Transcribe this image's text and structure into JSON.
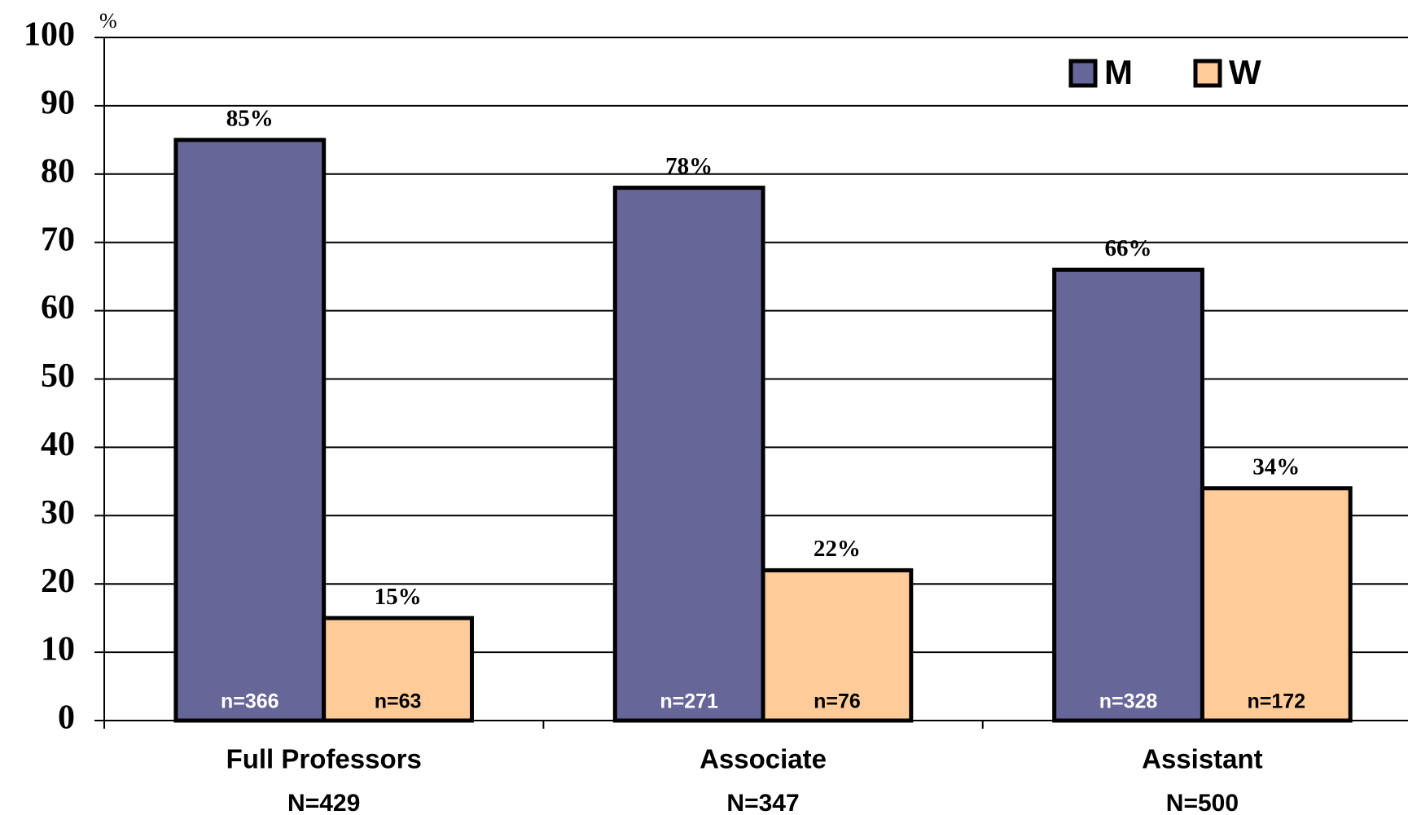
{
  "chart_data": {
    "type": "bar",
    "y_label": "%",
    "categories": [
      "Full Professors",
      "Associate",
      "Assistant"
    ],
    "category_totals": [
      "N=429",
      "N=347",
      "N=500"
    ],
    "series": [
      {
        "name": "M",
        "color": "#666699",
        "values": [
          85,
          78,
          66
        ],
        "value_labels": [
          "85%",
          "78%",
          "66%"
        ],
        "n_labels": [
          "n=366",
          "n=271",
          "n=328"
        ],
        "n_label_color": "#ffffff"
      },
      {
        "name": "W",
        "color": "#ffcc99",
        "values": [
          15,
          22,
          34
        ],
        "value_labels": [
          "15%",
          "22%",
          "34%"
        ],
        "n_labels": [
          "n=63",
          "n=76",
          "n=172"
        ],
        "n_label_color": "#000000"
      }
    ],
    "ylim": [
      0,
      100
    ],
    "yticks": [
      0,
      10,
      20,
      30,
      40,
      50,
      60,
      70,
      80,
      90,
      100
    ],
    "grid": true,
    "legend": "top-right"
  }
}
